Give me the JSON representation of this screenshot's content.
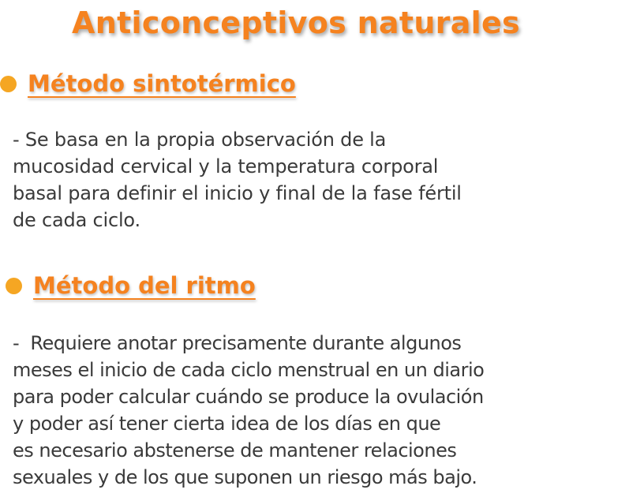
{
  "title": "Anticonceptivos naturales",
  "sections": [
    {
      "heading": "Método sintotérmico",
      "lines": [
        "- Se basa en la propia observación de la",
        "mucosidad cervical y la temperatura corporal",
        "basal para definir el inicio y final de la fase fértil",
        "de cada ciclo."
      ]
    },
    {
      "heading": "Método del ritmo",
      "lines": [
        "-  Requiere anotar precisamente durante algunos",
        "meses el inicio de cada ciclo menstrual en un diario",
        "para poder calcular cuándo se produce la ovulación",
        "y poder así tener cierta idea de los días en que",
        "es necesario abstenerse de mantener relaciones",
        "sexuales y de los que suponen un riesgo más bajo."
      ]
    }
  ],
  "colors": {
    "accent": "#f5821f",
    "bullet": "#f5a623",
    "text": "#3a3a3a"
  }
}
